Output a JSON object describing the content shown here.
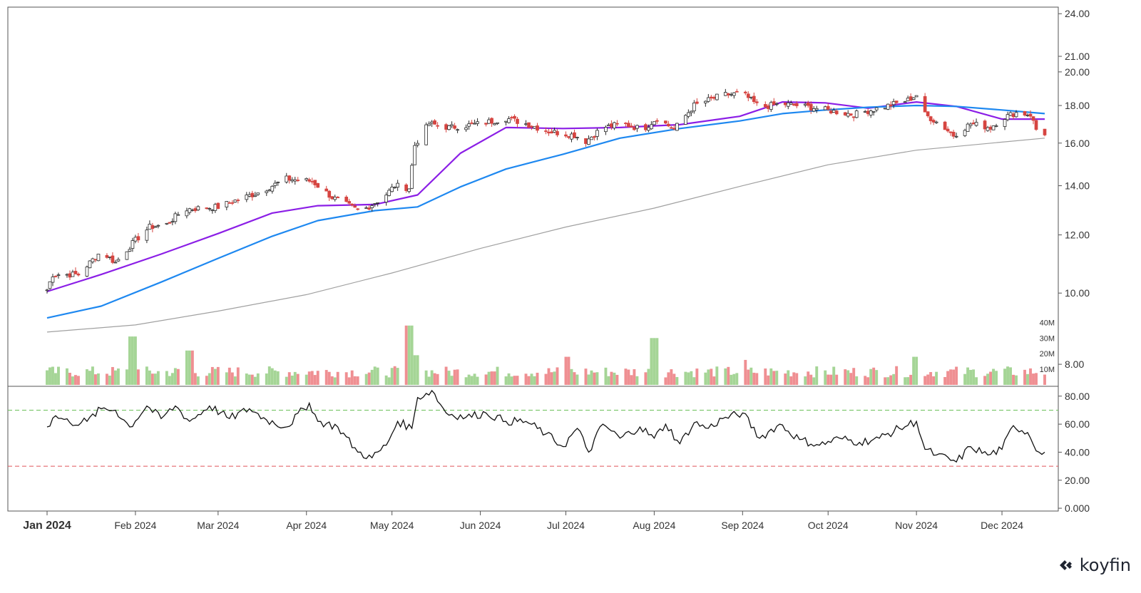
{
  "chart_data": {
    "type": "line",
    "subtype": "candlestick with volume and oscillator panes",
    "x_labels": [
      "Jan 2024",
      "Feb 2024",
      "Mar 2024",
      "Apr 2024",
      "May 2024",
      "Jun 2024",
      "Jul 2024",
      "Aug 2024",
      "Sep 2024",
      "Oct 2024",
      "Nov 2024",
      "Dec 2024"
    ],
    "price_axis": {
      "ticks": [
        "24.00",
        "21.00",
        "20.00",
        "18.00",
        "16.00",
        "14.00",
        "12.00",
        "10.00",
        "8.00"
      ],
      "ylim": [
        7.5,
        24.5
      ],
      "scale": "log"
    },
    "volume_axis": {
      "ticks": [
        "40M",
        "30M",
        "20M",
        "10M"
      ],
      "ylim": [
        0,
        42
      ]
    },
    "oscillator_axis": {
      "ticks": [
        "80.00",
        "60.00",
        "40.00",
        "20.00",
        "0.000"
      ],
      "ylim": [
        -2,
        86
      ],
      "upper_level": 70,
      "lower_level": 30
    },
    "close_anchors": [
      [
        "2024-01-01",
        10.1
      ],
      [
        "2024-01-03",
        10.6
      ],
      [
        "2024-01-12",
        10.6
      ],
      [
        "2024-01-20",
        11.4
      ],
      [
        "2024-01-25",
        11.0
      ],
      [
        "2024-02-01",
        11.8
      ],
      [
        "2024-02-06",
        12.3
      ],
      [
        "2024-02-12",
        12.4
      ],
      [
        "2024-02-18",
        13.0
      ],
      [
        "2024-03-01",
        13.1
      ],
      [
        "2024-03-15",
        13.7
      ],
      [
        "2024-03-25",
        14.3
      ],
      [
        "2024-04-03",
        14.2
      ],
      [
        "2024-04-10",
        13.5
      ],
      [
        "2024-04-20",
        12.9
      ],
      [
        "2024-04-28",
        13.5
      ],
      [
        "2024-05-02",
        14.0
      ],
      [
        "2024-05-07",
        13.9
      ],
      [
        "2024-05-09",
        15.9
      ],
      [
        "2024-05-14",
        17.0
      ],
      [
        "2024-05-21",
        16.8
      ],
      [
        "2024-06-01",
        17.0
      ],
      [
        "2024-06-10",
        17.3
      ],
      [
        "2024-06-17",
        17.0
      ],
      [
        "2024-06-25",
        16.6
      ],
      [
        "2024-07-04",
        16.4
      ],
      [
        "2024-07-08",
        16.1
      ],
      [
        "2024-07-14",
        16.8
      ],
      [
        "2024-07-21",
        17.0
      ],
      [
        "2024-07-28",
        16.7
      ],
      [
        "2024-08-02",
        17.3
      ],
      [
        "2024-08-08",
        16.7
      ],
      [
        "2024-08-15",
        18.0
      ],
      [
        "2024-08-25",
        18.6
      ],
      [
        "2024-09-01",
        18.7
      ],
      [
        "2024-09-07",
        17.9
      ],
      [
        "2024-09-15",
        18.1
      ],
      [
        "2024-09-25",
        17.9
      ],
      [
        "2024-10-02",
        17.7
      ],
      [
        "2024-10-10",
        17.5
      ],
      [
        "2024-10-20",
        17.9
      ],
      [
        "2024-10-29",
        18.3
      ],
      [
        "2024-11-01",
        18.6
      ],
      [
        "2024-11-03",
        17.6
      ],
      [
        "2024-11-10",
        16.9
      ],
      [
        "2024-11-14",
        16.4
      ],
      [
        "2024-11-20",
        17.0
      ],
      [
        "2024-11-27",
        16.8
      ],
      [
        "2024-12-01",
        17.3
      ],
      [
        "2024-12-06",
        17.6
      ],
      [
        "2024-12-11",
        17.5
      ],
      [
        "2024-12-13",
        16.7
      ],
      [
        "2024-12-16",
        16.5
      ]
    ],
    "series": [
      {
        "role": "ma-short",
        "color": "#8b1ee6",
        "points": [
          [
            "2024-01-01",
            10.05
          ],
          [
            "2024-01-20",
            10.6
          ],
          [
            "2024-02-10",
            11.3
          ],
          [
            "2024-03-01",
            12.05
          ],
          [
            "2024-03-20",
            12.85
          ],
          [
            "2024-04-05",
            13.15
          ],
          [
            "2024-04-25",
            13.2
          ],
          [
            "2024-05-10",
            13.6
          ],
          [
            "2024-05-25",
            15.5
          ],
          [
            "2024-06-10",
            16.8
          ],
          [
            "2024-06-30",
            16.75
          ],
          [
            "2024-07-20",
            16.8
          ],
          [
            "2024-08-10",
            16.95
          ],
          [
            "2024-08-31",
            17.4
          ],
          [
            "2024-09-15",
            18.2
          ],
          [
            "2024-09-30",
            18.15
          ],
          [
            "2024-10-15",
            17.85
          ],
          [
            "2024-11-01",
            18.2
          ],
          [
            "2024-11-15",
            17.95
          ],
          [
            "2024-12-01",
            17.25
          ],
          [
            "2024-12-16",
            17.25
          ]
        ]
      },
      {
        "role": "ma-medium",
        "color": "#1e88f0",
        "points": [
          [
            "2024-01-01",
            9.25
          ],
          [
            "2024-01-20",
            9.6
          ],
          [
            "2024-02-10",
            10.35
          ],
          [
            "2024-03-01",
            11.15
          ],
          [
            "2024-03-20",
            11.95
          ],
          [
            "2024-04-05",
            12.55
          ],
          [
            "2024-04-25",
            12.95
          ],
          [
            "2024-05-10",
            13.1
          ],
          [
            "2024-05-25",
            13.95
          ],
          [
            "2024-06-10",
            14.75
          ],
          [
            "2024-06-30",
            15.45
          ],
          [
            "2024-07-20",
            16.25
          ],
          [
            "2024-08-10",
            16.75
          ],
          [
            "2024-08-31",
            17.15
          ],
          [
            "2024-09-15",
            17.55
          ],
          [
            "2024-09-30",
            17.75
          ],
          [
            "2024-10-15",
            17.9
          ],
          [
            "2024-11-01",
            18.0
          ],
          [
            "2024-11-15",
            17.95
          ],
          [
            "2024-12-01",
            17.75
          ],
          [
            "2024-12-16",
            17.55
          ]
        ]
      },
      {
        "role": "ma-long",
        "color": "#a0a0a0",
        "points": [
          [
            "2024-01-01",
            8.85
          ],
          [
            "2024-02-01",
            9.05
          ],
          [
            "2024-03-01",
            9.45
          ],
          [
            "2024-04-01",
            9.95
          ],
          [
            "2024-05-01",
            10.65
          ],
          [
            "2024-06-01",
            11.5
          ],
          [
            "2024-07-01",
            12.3
          ],
          [
            "2024-08-01",
            13.05
          ],
          [
            "2024-09-01",
            14.0
          ],
          [
            "2024-10-01",
            14.95
          ],
          [
            "2024-11-01",
            15.65
          ],
          [
            "2024-12-01",
            16.05
          ],
          [
            "2024-12-16",
            16.25
          ]
        ]
      }
    ],
    "volume_spikes_M": [
      [
        "2024-01-31",
        31
      ],
      [
        "2024-02-20",
        22
      ],
      [
        "2024-05-07",
        38
      ],
      [
        "2024-05-10",
        19
      ],
      [
        "2024-07-01",
        18
      ],
      [
        "2024-08-01",
        30
      ],
      [
        "2024-09-01",
        16
      ],
      [
        "2024-11-01",
        18
      ]
    ],
    "volume_base_M": 8,
    "oscillator": [
      [
        "2024-01-01",
        58
      ],
      [
        "2024-01-04",
        66
      ],
      [
        "2024-01-09",
        61
      ],
      [
        "2024-01-15",
        62
      ],
      [
        "2024-01-20",
        71
      ],
      [
        "2024-01-25",
        70
      ],
      [
        "2024-01-30",
        58
      ],
      [
        "2024-02-05",
        73
      ],
      [
        "2024-02-10",
        64
      ],
      [
        "2024-02-15",
        73
      ],
      [
        "2024-02-20",
        62
      ],
      [
        "2024-02-27",
        73
      ],
      [
        "2024-03-05",
        64
      ],
      [
        "2024-03-12",
        71
      ],
      [
        "2024-03-18",
        63
      ],
      [
        "2024-03-25",
        58
      ],
      [
        "2024-04-02",
        75
      ],
      [
        "2024-04-05",
        62
      ],
      [
        "2024-04-12",
        58
      ],
      [
        "2024-04-19",
        40
      ],
      [
        "2024-04-24",
        36
      ],
      [
        "2024-04-29",
        45
      ],
      [
        "2024-05-03",
        62
      ],
      [
        "2024-05-08",
        57
      ],
      [
        "2024-05-10",
        79
      ],
      [
        "2024-05-15",
        84
      ],
      [
        "2024-05-20",
        68
      ],
      [
        "2024-05-27",
        65
      ],
      [
        "2024-06-03",
        68
      ],
      [
        "2024-06-10",
        62
      ],
      [
        "2024-06-17",
        62
      ],
      [
        "2024-06-24",
        53
      ],
      [
        "2024-06-30",
        44
      ],
      [
        "2024-07-05",
        57
      ],
      [
        "2024-07-09",
        40
      ],
      [
        "2024-07-14",
        60
      ],
      [
        "2024-07-20",
        50
      ],
      [
        "2024-07-27",
        58
      ],
      [
        "2024-08-01",
        50
      ],
      [
        "2024-08-05",
        60
      ],
      [
        "2024-08-10",
        46
      ],
      [
        "2024-08-15",
        61
      ],
      [
        "2024-08-20",
        57
      ],
      [
        "2024-08-25",
        64
      ],
      [
        "2024-09-01",
        68
      ],
      [
        "2024-09-07",
        50
      ],
      [
        "2024-09-14",
        60
      ],
      [
        "2024-09-21",
        49
      ],
      [
        "2024-09-28",
        45
      ],
      [
        "2024-10-05",
        50
      ],
      [
        "2024-10-12",
        47
      ],
      [
        "2024-10-19",
        50
      ],
      [
        "2024-10-26",
        57
      ],
      [
        "2024-11-01",
        62
      ],
      [
        "2024-11-04",
        42
      ],
      [
        "2024-11-08",
        38
      ],
      [
        "2024-11-15",
        33
      ],
      [
        "2024-11-20",
        44
      ],
      [
        "2024-11-26",
        38
      ],
      [
        "2024-12-01",
        42
      ],
      [
        "2024-12-05",
        59
      ],
      [
        "2024-12-10",
        54
      ],
      [
        "2024-12-14",
        40
      ],
      [
        "2024-12-16",
        40
      ]
    ],
    "colors": {
      "up_candle": "#ffffff",
      "up_outline": "#2a2a2a",
      "down_candle": "#d64541",
      "volume_up": "#a5d596",
      "volume_down": "#ef8f92",
      "upper_level_line": "#6bbf5a",
      "lower_level_line": "#e0555a",
      "oscillator_line": "#111111"
    }
  },
  "brand": {
    "logo_text": "koyfin"
  }
}
